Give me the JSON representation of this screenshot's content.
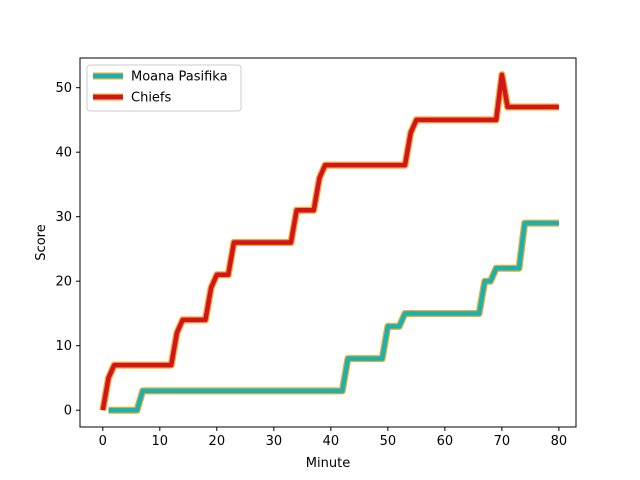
{
  "chart_data": {
    "type": "line",
    "title": "",
    "xlabel": "Minute",
    "ylabel": "Score",
    "xlim": [
      -4,
      83
    ],
    "ylim": [
      -2.6,
      54.6
    ],
    "xticks": [
      0,
      10,
      20,
      30,
      40,
      50,
      60,
      70,
      80
    ],
    "yticks": [
      0,
      10,
      20,
      30,
      40,
      50
    ],
    "grid": false,
    "legend_position": "top-left",
    "series": [
      {
        "name": "Moana Pasifika",
        "color": "#17b3b3",
        "edge_color": "#f0a830",
        "points": [
          [
            1,
            0
          ],
          [
            6,
            0
          ],
          [
            7,
            3
          ],
          [
            42,
            3
          ],
          [
            43,
            8
          ],
          [
            49,
            8
          ],
          [
            50,
            13
          ],
          [
            52,
            13
          ],
          [
            53,
            15
          ],
          [
            66,
            15
          ],
          [
            67,
            20
          ],
          [
            68,
            20
          ],
          [
            69,
            22
          ],
          [
            73,
            22
          ],
          [
            74,
            29
          ],
          [
            80,
            29
          ]
        ]
      },
      {
        "name": "Chiefs",
        "color": "#d4141c",
        "edge_color": "#f0a830",
        "points": [
          [
            0,
            0
          ],
          [
            1,
            5
          ],
          [
            2,
            7
          ],
          [
            12,
            7
          ],
          [
            13,
            12
          ],
          [
            14,
            14
          ],
          [
            18,
            14
          ],
          [
            19,
            19
          ],
          [
            20,
            21
          ],
          [
            22,
            21
          ],
          [
            23,
            26
          ],
          [
            33,
            26
          ],
          [
            34,
            31
          ],
          [
            37,
            31
          ],
          [
            38,
            36
          ],
          [
            39,
            38
          ],
          [
            53,
            38
          ],
          [
            54,
            43
          ],
          [
            55,
            45
          ],
          [
            69,
            45
          ],
          [
            70,
            52
          ],
          [
            71,
            47
          ],
          [
            80,
            47
          ]
        ]
      }
    ]
  }
}
